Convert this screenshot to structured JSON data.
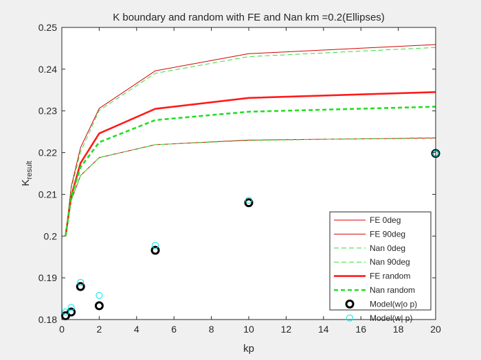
{
  "chart_data": {
    "type": "line",
    "title": "K boundary and random with FE and Nan km =0.2(Ellipses)",
    "xlabel": "kp",
    "ylabel_main": "K",
    "ylabel_sub": "result",
    "xlim": [
      0,
      20
    ],
    "ylim": [
      0.18,
      0.25
    ],
    "xticks": [
      0,
      2,
      4,
      6,
      8,
      10,
      12,
      14,
      16,
      18,
      20
    ],
    "yticks": [
      0.18,
      0.19,
      0.2,
      0.21,
      0.22,
      0.23,
      0.24,
      0.25
    ],
    "ytick_labels": [
      "0.18",
      "0.19",
      "0.2",
      "0.21",
      "0.22",
      "0.23",
      "0.24",
      "0.25"
    ],
    "grid": false,
    "legend_position": "bottom-right",
    "series": [
      {
        "name": "FE 0deg",
        "style": "thin-solid",
        "color": "#d40000",
        "x": [
          0.2,
          0.5,
          1,
          2,
          5,
          10,
          20
        ],
        "y": [
          0.2,
          0.2085,
          0.2145,
          0.2188,
          0.2219,
          0.223,
          0.2235
        ]
      },
      {
        "name": "FE 90deg",
        "style": "thin-solid",
        "color": "#d40000",
        "x": [
          0.2,
          0.5,
          1,
          2,
          5,
          10,
          20
        ],
        "y": [
          0.2,
          0.2118,
          0.2212,
          0.2306,
          0.2396,
          0.2437,
          0.2459
        ]
      },
      {
        "name": "Nan 0deg",
        "style": "thin-dashed",
        "color": "#33dd33",
        "x": [
          0.2,
          0.5,
          1,
          2,
          5,
          10,
          20
        ],
        "y": [
          0.2,
          0.2085,
          0.2145,
          0.2188,
          0.2219,
          0.2229,
          0.2236
        ]
      },
      {
        "name": "Nan 90deg",
        "style": "thin-dashed",
        "color": "#33dd33",
        "x": [
          0.2,
          0.5,
          1,
          2,
          5,
          10,
          20
        ],
        "y": [
          0.2,
          0.2113,
          0.2202,
          0.2301,
          0.239,
          0.243,
          0.2452
        ]
      },
      {
        "name": "FE random",
        "style": "thick-solid",
        "color": "#ff1a1a",
        "x": [
          0.2,
          0.5,
          1,
          2,
          5,
          10,
          20
        ],
        "y": [
          0.2,
          0.2095,
          0.2175,
          0.2246,
          0.2305,
          0.2331,
          0.2345
        ]
      },
      {
        "name": "Nan random",
        "style": "thick-dashed",
        "color": "#22dd22",
        "x": [
          0.2,
          0.5,
          1,
          2,
          5,
          10,
          20
        ],
        "y": [
          0.2,
          0.2092,
          0.2165,
          0.2225,
          0.2278,
          0.2298,
          0.231
        ]
      },
      {
        "name": "Model(w|o p)",
        "style": "marker-circle-thick",
        "color": "#000000",
        "x": [
          0.2,
          0.5,
          1,
          2,
          5,
          10,
          20
        ],
        "y": [
          0.1809,
          0.1818,
          0.1879,
          0.1833,
          0.1966,
          0.208,
          0.2198
        ]
      },
      {
        "name": "Model(w| p)",
        "style": "marker-circle-thin",
        "color": "#00e5e5",
        "x": [
          0.2,
          0.5,
          1,
          2,
          5,
          10,
          20
        ],
        "y": [
          0.1818,
          0.1829,
          0.1889,
          0.1858,
          0.1978,
          0.2086,
          0.2198
        ]
      }
    ]
  }
}
